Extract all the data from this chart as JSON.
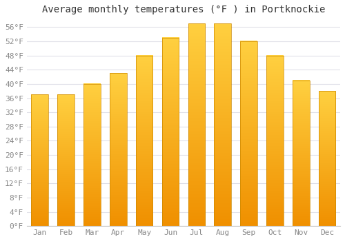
{
  "title": "Average monthly temperatures (°F ) in Portknockie",
  "months": [
    "Jan",
    "Feb",
    "Mar",
    "Apr",
    "May",
    "Jun",
    "Jul",
    "Aug",
    "Sep",
    "Oct",
    "Nov",
    "Dec"
  ],
  "values": [
    37,
    37,
    40,
    43,
    48,
    53,
    57,
    57,
    52,
    48,
    41,
    38
  ],
  "bar_color_top": "#FFD040",
  "bar_color_bottom": "#F09000",
  "bar_edge_color": "#CC8800",
  "background_color": "#FFFFFF",
  "grid_color": "#E0E0E8",
  "tick_label_color": "#888888",
  "title_color": "#333333",
  "ylim": [
    0,
    58
  ],
  "ytick_values": [
    0,
    4,
    8,
    12,
    16,
    20,
    24,
    28,
    32,
    36,
    40,
    44,
    48,
    52,
    56
  ],
  "title_fontsize": 10,
  "tick_fontsize": 8
}
